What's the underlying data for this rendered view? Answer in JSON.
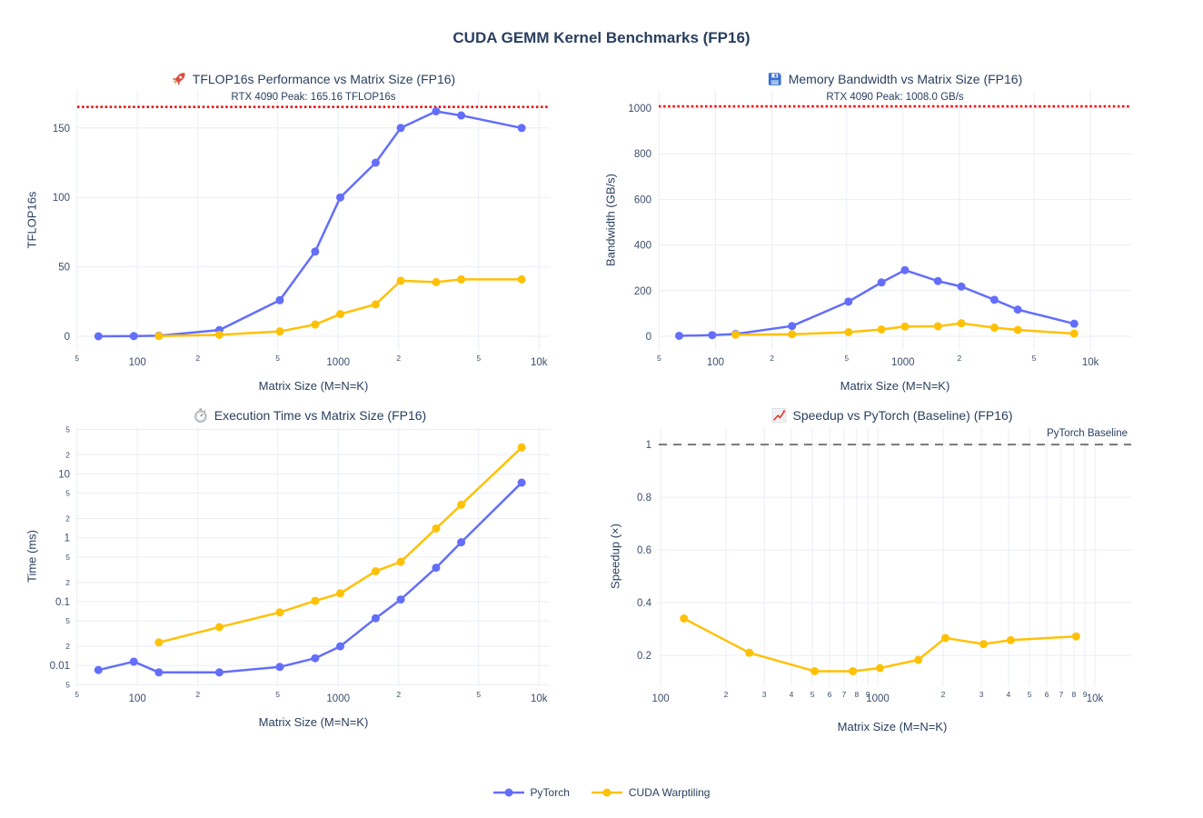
{
  "page": {
    "title": "CUDA GEMM Kernel Benchmarks (FP16)"
  },
  "colors": {
    "pytorch": "#636efa",
    "cuda_warptiling": "#ffc105",
    "peak_line": "#ee0000",
    "baseline_line": "#777777",
    "grid": "#e9eef6",
    "title_text": "#2a3f5f",
    "tick_text": "#3d4e6d"
  },
  "legend": {
    "items": [
      {
        "label": "PyTorch",
        "color": "#636efa"
      },
      {
        "label": "CUDA Warptiling",
        "color": "#ffc105"
      }
    ]
  },
  "chart_data": [
    {
      "id": "tflops",
      "type": "line",
      "icon": "rocket-icon",
      "title": "TFLOP16s Performance vs Matrix Size (FP16)",
      "annotation": "RTX 4090 Peak: 165.16 TFLOP16s",
      "xlabel": "Matrix Size (M=N=K)",
      "ylabel": "TFLOP16s",
      "xscale": "log",
      "yscale": "linear",
      "xlim": [
        50.2,
        11300
      ],
      "ylim": [
        -9.8,
        176.7
      ],
      "grid": true,
      "legend_position": "bottom-center-shared",
      "refline": {
        "value": 165.16,
        "style": "dotted",
        "color": "#ee0000"
      },
      "xticks": [
        {
          "v": 50,
          "t": "5",
          "minor": true
        },
        {
          "v": 100,
          "t": "100"
        },
        {
          "v": 200,
          "t": "2",
          "minor": true
        },
        {
          "v": 500,
          "t": "5",
          "minor": true
        },
        {
          "v": 1000,
          "t": "1000"
        },
        {
          "v": 2000,
          "t": "2",
          "minor": true
        },
        {
          "v": 5000,
          "t": "5",
          "minor": true
        },
        {
          "v": 10000,
          "t": "10k"
        }
      ],
      "yticks": [
        {
          "v": 0,
          "t": "0"
        },
        {
          "v": 50,
          "t": "50"
        },
        {
          "v": 100,
          "t": "100"
        },
        {
          "v": 150,
          "t": "150"
        }
      ],
      "series": [
        {
          "name": "PyTorch",
          "color": "#636efa",
          "x": [
            64,
            96,
            128,
            256,
            512,
            768,
            1024,
            1536,
            2048,
            3072,
            4096,
            8192
          ],
          "y": [
            0.05,
            0.15,
            0.45,
            4.5,
            26,
            61,
            100,
            125,
            150,
            162,
            159,
            150
          ]
        },
        {
          "name": "CUDA Warptiling",
          "color": "#ffc105",
          "x": [
            128,
            256,
            512,
            768,
            1024,
            1536,
            2048,
            3072,
            4096,
            8192
          ],
          "y": [
            0.2,
            1.1,
            3.5,
            8.5,
            16,
            23,
            40,
            39,
            41,
            41
          ]
        }
      ]
    },
    {
      "id": "bandwidth",
      "type": "line",
      "icon": "floppy-icon",
      "title": "Memory Bandwidth vs Matrix Size (FP16)",
      "annotation": "RTX 4090 Peak: 1008.0 GB/s",
      "xlabel": "Matrix Size (M=N=K)",
      "ylabel": "Bandwidth (GB/s)",
      "xscale": "log",
      "yscale": "linear",
      "xlim": [
        49.8,
        16500
      ],
      "ylim": [
        -59.8,
        1075.7
      ],
      "grid": true,
      "refline": {
        "value": 1008.0,
        "style": "dotted",
        "color": "#ee0000"
      },
      "xticks": [
        {
          "v": 50,
          "t": "5",
          "minor": true
        },
        {
          "v": 100,
          "t": "100"
        },
        {
          "v": 200,
          "t": "2",
          "minor": true
        },
        {
          "v": 500,
          "t": "5",
          "minor": true
        },
        {
          "v": 1000,
          "t": "1000"
        },
        {
          "v": 2000,
          "t": "2",
          "minor": true
        },
        {
          "v": 5000,
          "t": "5",
          "minor": true
        },
        {
          "v": 10000,
          "t": "10k"
        }
      ],
      "yticks": [
        {
          "v": 0,
          "t": "0"
        },
        {
          "v": 200,
          "t": "200"
        },
        {
          "v": 400,
          "t": "400"
        },
        {
          "v": 600,
          "t": "600"
        },
        {
          "v": 800,
          "t": "800"
        },
        {
          "v": 1000,
          "t": "1000"
        }
      ],
      "series": [
        {
          "name": "PyTorch",
          "color": "#636efa",
          "x": [
            64,
            96,
            128,
            256,
            512,
            768,
            1024,
            1536,
            2048,
            3072,
            4096,
            8192
          ],
          "y": [
            2,
            5,
            10,
            45,
            152,
            236,
            290,
            242,
            218,
            160,
            117,
            55
          ]
        },
        {
          "name": "CUDA Warptiling",
          "color": "#ffc105",
          "x": [
            128,
            256,
            512,
            768,
            1024,
            1536,
            2048,
            3072,
            4096,
            8192
          ],
          "y": [
            7,
            9,
            18,
            30,
            43,
            44,
            57,
            38,
            28,
            12
          ]
        }
      ]
    },
    {
      "id": "time",
      "type": "line",
      "icon": "stopwatch-icon",
      "title": "Execution Time vs Matrix Size (FP16)",
      "annotation": "",
      "xlabel": "Matrix Size (M=N=K)",
      "ylabel": "Time (ms)",
      "xscale": "log",
      "yscale": "log",
      "xlim": [
        50.2,
        11300
      ],
      "ylim": [
        0.00474,
        54
      ],
      "grid": true,
      "xticks": [
        {
          "v": 50,
          "t": "5",
          "minor": true
        },
        {
          "v": 100,
          "t": "100"
        },
        {
          "v": 200,
          "t": "2",
          "minor": true
        },
        {
          "v": 500,
          "t": "5",
          "minor": true
        },
        {
          "v": 1000,
          "t": "1000"
        },
        {
          "v": 2000,
          "t": "2",
          "minor": true
        },
        {
          "v": 5000,
          "t": "5",
          "minor": true
        },
        {
          "v": 10000,
          "t": "10k"
        }
      ],
      "yticks": [
        {
          "v": 50,
          "t": "5",
          "minor": true
        },
        {
          "v": 20,
          "t": "2",
          "minor": true
        },
        {
          "v": 10,
          "t": "10"
        },
        {
          "v": 5,
          "t": "5",
          "minor": true
        },
        {
          "v": 2,
          "t": "2",
          "minor": true
        },
        {
          "v": 1,
          "t": "1"
        },
        {
          "v": 0.5,
          "t": "5",
          "minor": true
        },
        {
          "v": 0.2,
          "t": "2",
          "minor": true
        },
        {
          "v": 0.1,
          "t": "0.1"
        },
        {
          "v": 0.05,
          "t": "5",
          "minor": true
        },
        {
          "v": 0.02,
          "t": "2",
          "minor": true
        },
        {
          "v": 0.01,
          "t": "0.01"
        },
        {
          "v": 0.005,
          "t": "5",
          "minor": true
        }
      ],
      "series": [
        {
          "name": "PyTorch",
          "color": "#636efa",
          "x": [
            64,
            96,
            128,
            256,
            512,
            768,
            1024,
            1536,
            2048,
            3072,
            4096,
            8192
          ],
          "y": [
            0.0085,
            0.0115,
            0.0078,
            0.0078,
            0.0095,
            0.013,
            0.02,
            0.055,
            0.108,
            0.34,
            0.85,
            7.3
          ]
        },
        {
          "name": "CUDA Warptiling",
          "color": "#ffc105",
          "x": [
            128,
            256,
            512,
            768,
            1024,
            1536,
            2048,
            3072,
            4096,
            8192
          ],
          "y": [
            0.023,
            0.04,
            0.068,
            0.103,
            0.135,
            0.3,
            0.42,
            1.4,
            3.3,
            26
          ]
        }
      ]
    },
    {
      "id": "speedup",
      "type": "line",
      "icon": "chart-increasing-icon",
      "title": "Speedup vs PyTorch (Baseline) (FP16)",
      "annotation": "PyTorch Baseline",
      "xlabel": "Matrix Size (M=N=K)",
      "ylabel": "Speedup (×)",
      "xscale": "log",
      "yscale": "linear",
      "xlim": [
        98,
        14700
      ],
      "ylim": [
        0.083,
        1.066
      ],
      "grid": true,
      "refline": {
        "value": 1.0,
        "style": "dashed",
        "color": "#777777"
      },
      "xticks": [
        {
          "v": 100,
          "t": "100"
        },
        {
          "v": 200,
          "t": "2",
          "minor": true
        },
        {
          "v": 300,
          "t": "3",
          "minor": true
        },
        {
          "v": 400,
          "t": "4",
          "minor": true
        },
        {
          "v": 500,
          "t": "5",
          "minor": true
        },
        {
          "v": 600,
          "t": "6",
          "minor": true
        },
        {
          "v": 700,
          "t": "7",
          "minor": true
        },
        {
          "v": 800,
          "t": "8",
          "minor": true
        },
        {
          "v": 900,
          "t": "9",
          "minor": true
        },
        {
          "v": 1000,
          "t": "1000"
        },
        {
          "v": 2000,
          "t": "2",
          "minor": true
        },
        {
          "v": 3000,
          "t": "3",
          "minor": true
        },
        {
          "v": 4000,
          "t": "4",
          "minor": true
        },
        {
          "v": 5000,
          "t": "5",
          "minor": true
        },
        {
          "v": 6000,
          "t": "6",
          "minor": true
        },
        {
          "v": 7000,
          "t": "7",
          "minor": true
        },
        {
          "v": 8000,
          "t": "8",
          "minor": true
        },
        {
          "v": 9000,
          "t": "9",
          "minor": true
        },
        {
          "v": 10000,
          "t": "10k"
        }
      ],
      "yticks": [
        {
          "v": 0.2,
          "t": "0.2"
        },
        {
          "v": 0.4,
          "t": "0.4"
        },
        {
          "v": 0.6,
          "t": "0.6"
        },
        {
          "v": 0.8,
          "t": "0.8"
        },
        {
          "v": 1,
          "t": "1"
        }
      ],
      "series": [
        {
          "name": "CUDA Warptiling",
          "color": "#ffc105",
          "x": [
            128,
            256,
            512,
            768,
            1024,
            1536,
            2048,
            3072,
            4096,
            8192
          ],
          "y": [
            0.34,
            0.21,
            0.14,
            0.14,
            0.152,
            0.183,
            0.266,
            0.243,
            0.258,
            0.272
          ]
        }
      ]
    }
  ]
}
